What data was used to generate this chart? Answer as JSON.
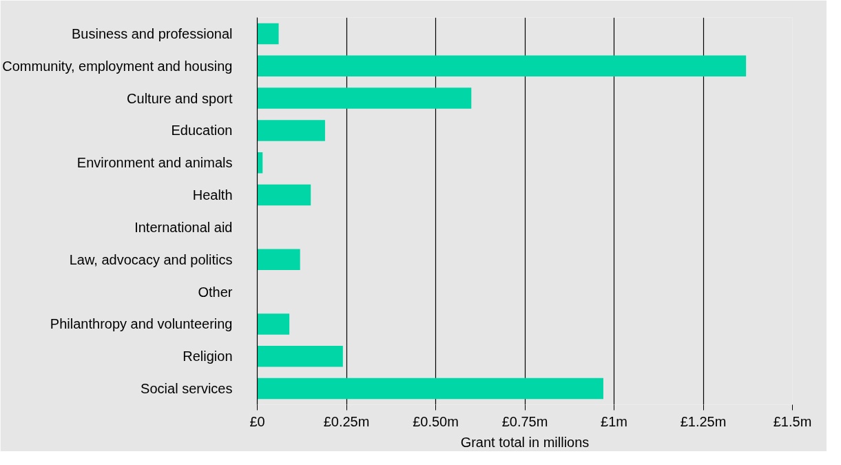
{
  "chart_data": {
    "type": "bar",
    "orientation": "horizontal",
    "xlabel": "Grant total in millions",
    "categories": [
      "Business and professional",
      "Community, employment and housing",
      "Culture and sport",
      "Education",
      "Environment and animals",
      "Health",
      "International aid",
      "Law, advocacy and politics",
      "Other",
      "Philanthropy and volunteering",
      "Religion",
      "Social services"
    ],
    "values": [
      0.06,
      1.37,
      0.6,
      0.19,
      0.015,
      0.15,
      0,
      0.12,
      0,
      0.09,
      0.24,
      0.97
    ],
    "color": "#00d6a6",
    "xlim": [
      0,
      1.5
    ],
    "xticks": [
      {
        "value": 0,
        "label": "£0"
      },
      {
        "value": 0.25,
        "label": "£0.25m"
      },
      {
        "value": 0.5,
        "label": "£0.50m"
      },
      {
        "value": 0.75,
        "label": "£0.75m"
      },
      {
        "value": 1,
        "label": "£1m"
      },
      {
        "value": 1.25,
        "label": "£1.25m"
      },
      {
        "value": 1.5,
        "label": "£1.5m"
      }
    ],
    "grid": "x"
  }
}
